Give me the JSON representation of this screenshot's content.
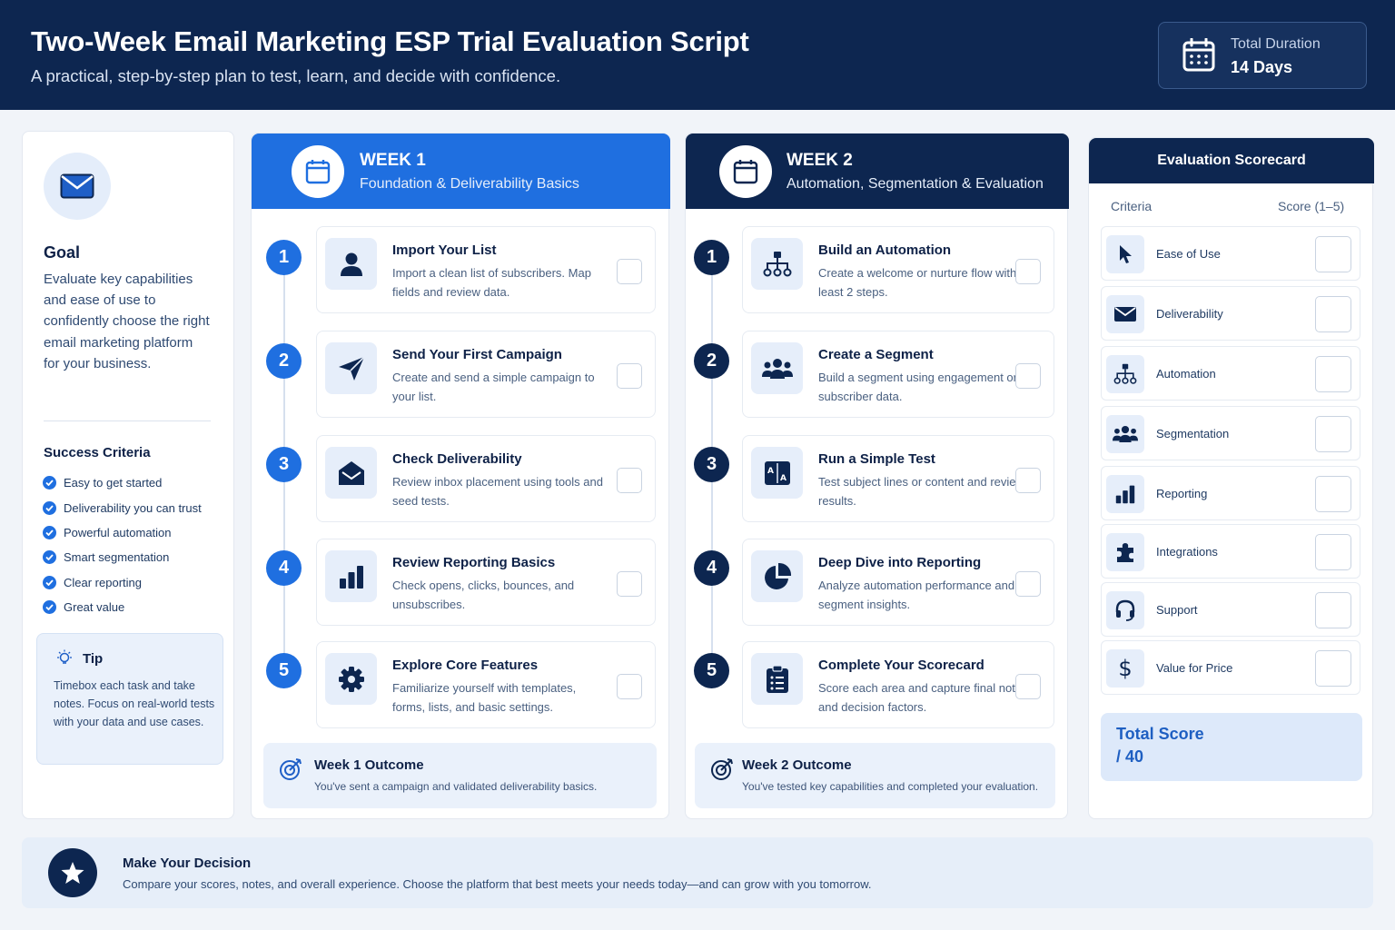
{
  "header": {
    "title": "Two-Week Email Marketing ESP Trial Evaluation Script",
    "subtitle": "A practical, step-by-step plan to test, learn, and decide with confidence.",
    "duration_label": "Total Duration",
    "duration_value": "14 Days"
  },
  "goal": {
    "title": "Goal",
    "text": "Evaluate key capabilities and ease of use to confidently choose the right email marketing platform for your business.",
    "icon": "envelope-icon"
  },
  "success": {
    "title": "Success Criteria",
    "items": [
      "Easy to get started",
      "Deliverability you can trust",
      "Powerful automation",
      "Smart segmentation",
      "Clear reporting",
      "Great value"
    ]
  },
  "tip": {
    "title": "Tip",
    "text": "Timebox each task and take notes. Focus on real-world tests with your data and use cases."
  },
  "week1": {
    "label": "WEEK 1",
    "subtitle": "Foundation & Deliverability Basics",
    "color": "#1f6fe0",
    "steps": [
      {
        "num": "1",
        "title": "Import Your List",
        "desc": "Import a clean list of subscribers. Map fields and review data.",
        "icon": "user-icon"
      },
      {
        "num": "2",
        "title": "Send Your First Campaign",
        "desc": "Create and send a simple campaign to your list.",
        "icon": "paper-plane-icon"
      },
      {
        "num": "3",
        "title": "Check Deliverability",
        "desc": "Review inbox placement using tools and seed tests.",
        "icon": "open-envelope-icon"
      },
      {
        "num": "4",
        "title": "Review Reporting Basics",
        "desc": "Check opens, clicks, bounces, and unsubscribes.",
        "icon": "bar-chart-icon"
      },
      {
        "num": "5",
        "title": "Explore Core Features",
        "desc": "Familiarize yourself with templates, forms, lists, and basic settings.",
        "icon": "gear-icon"
      }
    ],
    "outcome_title": "Week 1 Outcome",
    "outcome_desc": "You've sent a campaign and validated deliverability basics."
  },
  "week2": {
    "label": "WEEK 2",
    "subtitle": "Automation, Segmentation & Evaluation",
    "color": "#0d2650",
    "steps": [
      {
        "num": "1",
        "title": "Build an Automation",
        "desc": "Create a welcome or nurture flow with at least 2 steps.",
        "icon": "workflow-icon"
      },
      {
        "num": "2",
        "title": "Create a Segment",
        "desc": "Build a segment using engagement or subscriber data.",
        "icon": "users-icon"
      },
      {
        "num": "3",
        "title": "Run a Simple Test",
        "desc": "Test subject lines or content and review results.",
        "icon": "ab-test-icon"
      },
      {
        "num": "4",
        "title": "Deep Dive into Reporting",
        "desc": "Analyze automation performance and segment insights.",
        "icon": "pie-chart-icon"
      },
      {
        "num": "5",
        "title": "Complete Your Scorecard",
        "desc": "Score each area and capture final notes and decision factors.",
        "icon": "clipboard-icon"
      }
    ],
    "outcome_title": "Week 2 Outcome",
    "outcome_desc": "You've tested key capabilities and completed your evaluation."
  },
  "scorecard": {
    "title": "Evaluation Scorecard",
    "col_criteria": "Criteria",
    "col_score": "Score (1–5)",
    "rows": [
      {
        "label": "Ease of Use",
        "icon": "cursor-icon"
      },
      {
        "label": "Deliverability",
        "icon": "envelope-icon"
      },
      {
        "label": "Automation",
        "icon": "workflow-icon"
      },
      {
        "label": "Segmentation",
        "icon": "users-icon"
      },
      {
        "label": "Reporting",
        "icon": "bar-chart-icon"
      },
      {
        "label": "Integrations",
        "icon": "puzzle-icon"
      },
      {
        "label": "Support",
        "icon": "headset-icon"
      },
      {
        "label": "Value for Price",
        "icon": "dollar-icon"
      }
    ],
    "total_label": "Total Score",
    "total_value": "/ 40"
  },
  "decision": {
    "title": "Make Your Decision",
    "text": "Compare your scores, notes, and overall experience. Choose the platform that best meets your needs today—and can grow with you tomorrow."
  }
}
